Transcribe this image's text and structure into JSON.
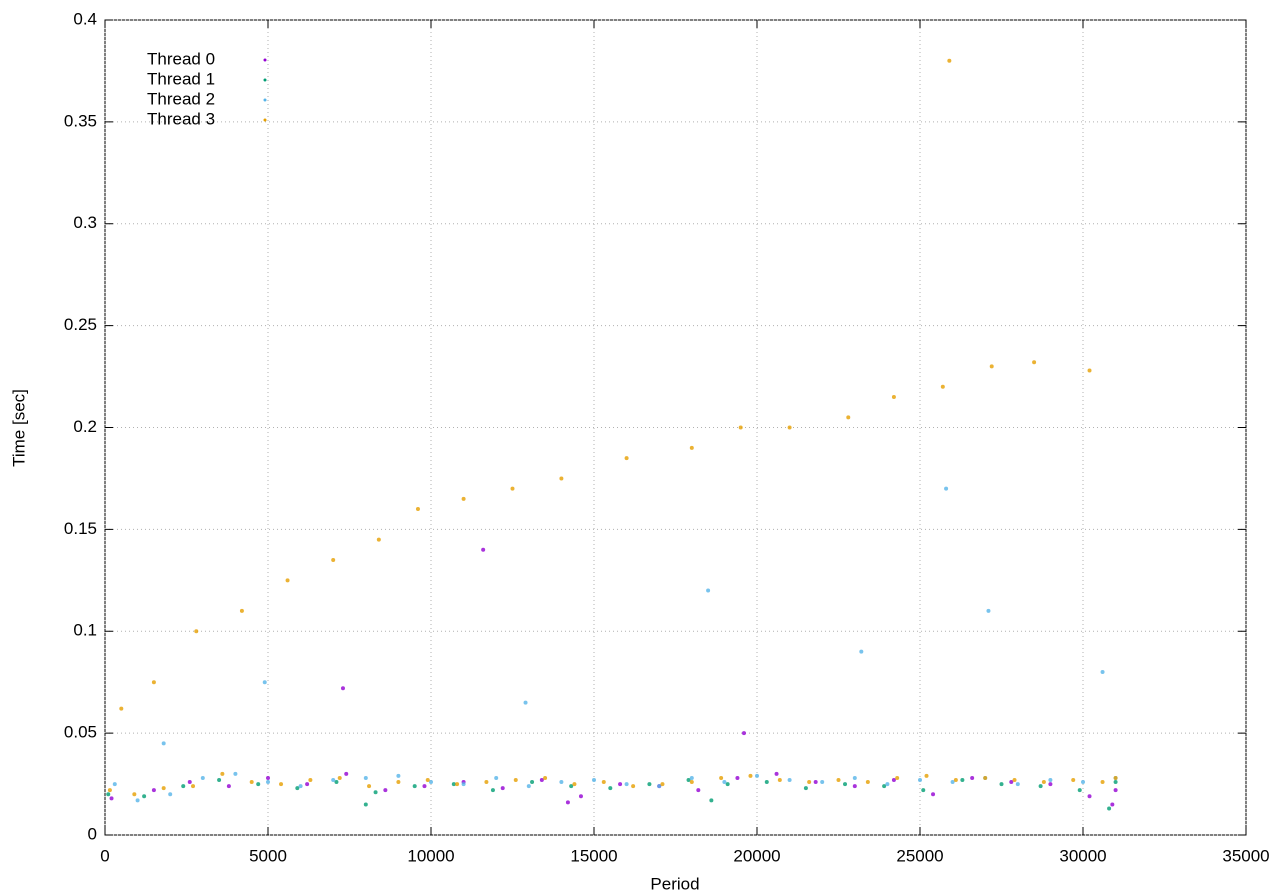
{
  "chart_data": {
    "type": "scatter",
    "xlabel": "Period",
    "ylabel": "Time [sec]",
    "xlim": [
      0,
      35000
    ],
    "ylim": [
      0,
      0.4
    ],
    "xticks": [
      0,
      5000,
      10000,
      15000,
      20000,
      25000,
      30000,
      35000
    ],
    "yticks": [
      0,
      0.05,
      0.1,
      0.15,
      0.2,
      0.25,
      0.3,
      0.35,
      0.4
    ],
    "grid": true,
    "legend": "upper-left",
    "series": [
      {
        "name": "Thread 0",
        "color": "#9400d3",
        "x": [
          200,
          1500,
          2600,
          3800,
          5000,
          6200,
          7400,
          8600,
          9800,
          11000,
          12200,
          13400,
          14600,
          15800,
          17000,
          18200,
          19400,
          20600,
          21800,
          23000,
          24200,
          25400,
          26600,
          27800,
          29000,
          30200,
          31000,
          7300,
          11600,
          19600,
          14200,
          30900
        ],
        "values": [
          0.018,
          0.022,
          0.026,
          0.024,
          0.028,
          0.025,
          0.03,
          0.022,
          0.024,
          0.026,
          0.023,
          0.027,
          0.019,
          0.025,
          0.024,
          0.022,
          0.028,
          0.03,
          0.026,
          0.024,
          0.027,
          0.02,
          0.028,
          0.026,
          0.025,
          0.019,
          0.022,
          0.072,
          0.14,
          0.05,
          0.016,
          0.015
        ]
      },
      {
        "name": "Thread 1",
        "color": "#009e73",
        "x": [
          100,
          1200,
          2400,
          3500,
          4700,
          5900,
          7100,
          8300,
          9500,
          10700,
          11900,
          13100,
          14300,
          15500,
          16700,
          17900,
          19100,
          20300,
          21500,
          22700,
          23900,
          25100,
          26300,
          27500,
          28700,
          29900,
          31000,
          8000,
          18600,
          30800
        ],
        "values": [
          0.02,
          0.019,
          0.024,
          0.027,
          0.025,
          0.023,
          0.026,
          0.021,
          0.024,
          0.025,
          0.022,
          0.026,
          0.024,
          0.023,
          0.025,
          0.027,
          0.025,
          0.026,
          0.023,
          0.025,
          0.024,
          0.022,
          0.027,
          0.025,
          0.024,
          0.022,
          0.026,
          0.015,
          0.017,
          0.013
        ]
      },
      {
        "name": "Thread 2",
        "color": "#56b4e9",
        "x": [
          300,
          1000,
          2000,
          3000,
          4000,
          5000,
          6000,
          7000,
          8000,
          9000,
          10000,
          11000,
          12000,
          13000,
          14000,
          15000,
          16000,
          17000,
          18000,
          19000,
          20000,
          21000,
          22000,
          23000,
          24000,
          25000,
          26000,
          27000,
          28000,
          29000,
          30000,
          31000,
          4900,
          12900,
          18500,
          23200,
          25800,
          27100,
          30600,
          1800
        ],
        "values": [
          0.025,
          0.017,
          0.02,
          0.028,
          0.03,
          0.026,
          0.024,
          0.027,
          0.028,
          0.029,
          0.026,
          0.025,
          0.028,
          0.024,
          0.026,
          0.027,
          0.025,
          0.024,
          0.028,
          0.026,
          0.029,
          0.027,
          0.026,
          0.028,
          0.025,
          0.027,
          0.026,
          0.028,
          0.025,
          0.027,
          0.026,
          0.028,
          0.075,
          0.065,
          0.12,
          0.09,
          0.17,
          0.11,
          0.08,
          0.045
        ]
      },
      {
        "name": "Thread 3",
        "color": "#e69f00",
        "x": [
          150,
          900,
          1800,
          2700,
          3600,
          4500,
          5400,
          6300,
          7200,
          8100,
          9000,
          9900,
          10800,
          11700,
          12600,
          13500,
          14400,
          15300,
          16200,
          17100,
          18000,
          18900,
          19800,
          20700,
          21600,
          22500,
          23400,
          24300,
          25200,
          26100,
          27000,
          27900,
          28800,
          29700,
          30600,
          31000,
          500,
          1500,
          2800,
          4200,
          5600,
          7000,
          8400,
          9600,
          11000,
          12500,
          14000,
          16000,
          18000,
          19500,
          21000,
          22800,
          24200,
          25700,
          27200,
          28500,
          30200,
          25900
        ],
        "values": [
          0.022,
          0.02,
          0.023,
          0.024,
          0.03,
          0.026,
          0.025,
          0.027,
          0.028,
          0.024,
          0.026,
          0.027,
          0.025,
          0.026,
          0.027,
          0.028,
          0.025,
          0.026,
          0.024,
          0.025,
          0.026,
          0.028,
          0.029,
          0.027,
          0.026,
          0.027,
          0.026,
          0.028,
          0.029,
          0.027,
          0.028,
          0.027,
          0.026,
          0.027,
          0.026,
          0.028,
          0.062,
          0.075,
          0.1,
          0.11,
          0.125,
          0.135,
          0.145,
          0.16,
          0.165,
          0.17,
          0.175,
          0.185,
          0.19,
          0.2,
          0.2,
          0.205,
          0.215,
          0.22,
          0.23,
          0.232,
          0.228,
          0.38
        ]
      }
    ]
  }
}
